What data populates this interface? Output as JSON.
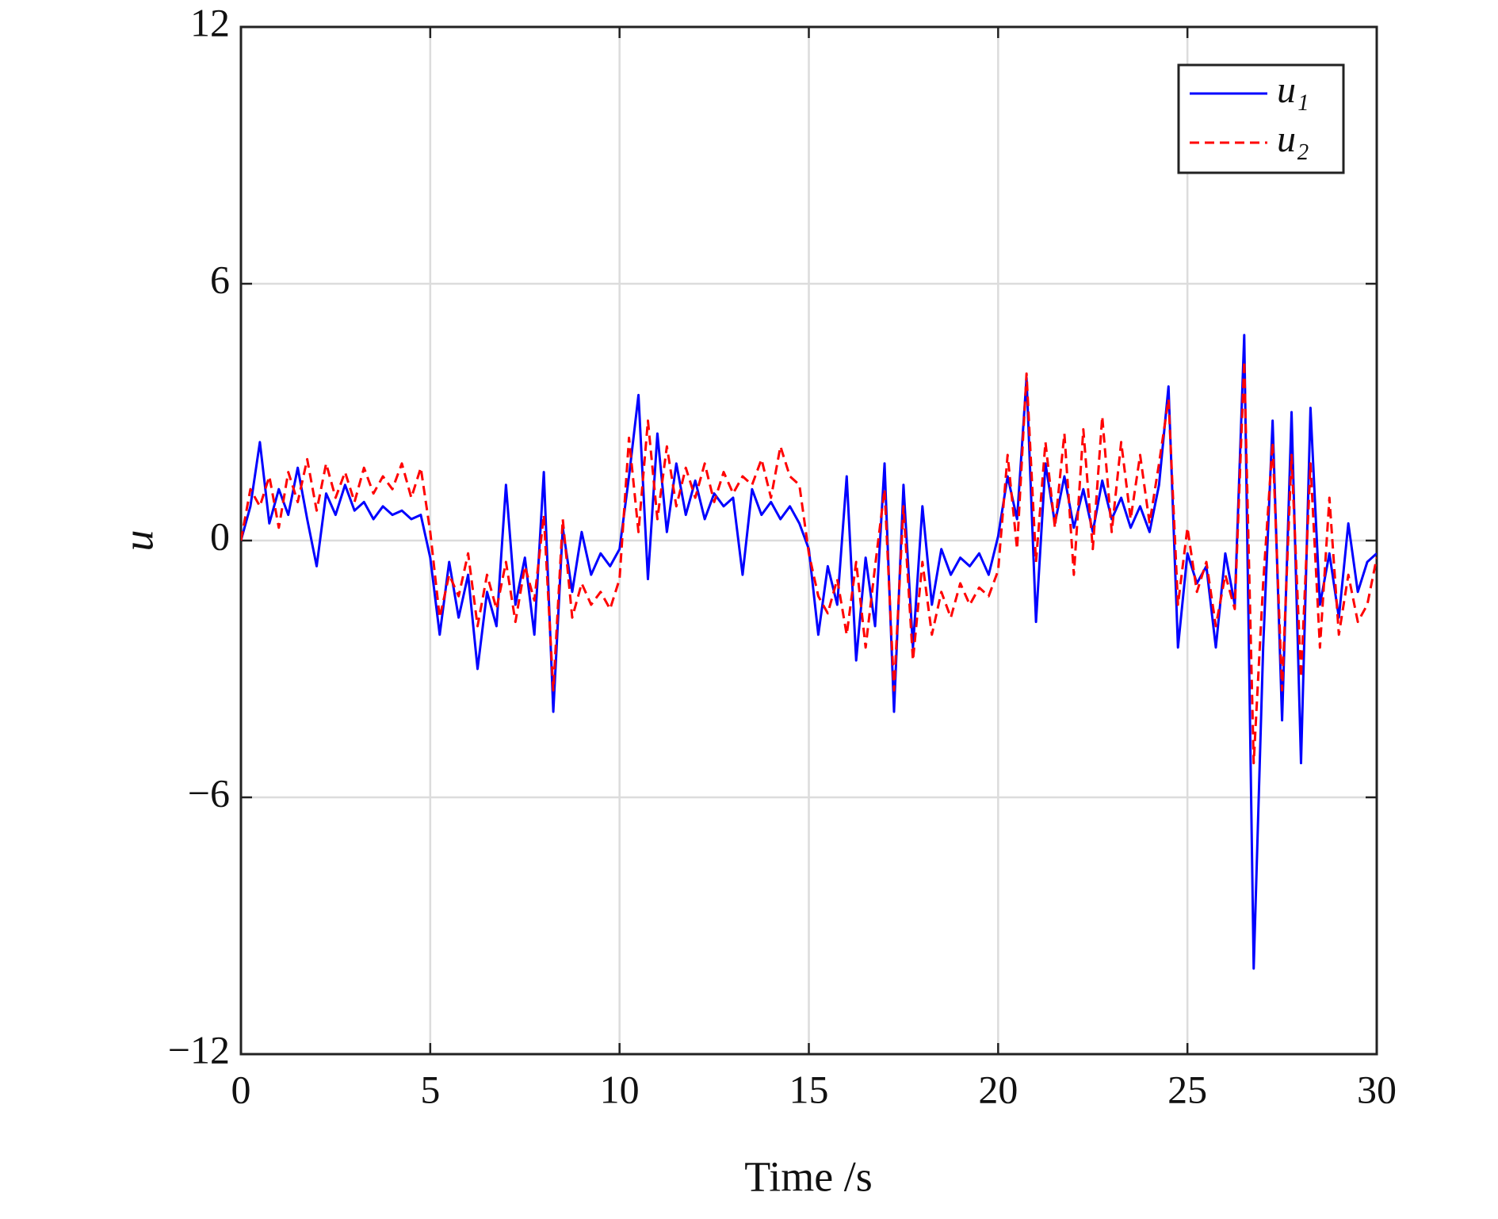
{
  "chart_data": {
    "type": "line",
    "x_label": "Time /s",
    "y_label": "u",
    "x": [
      0,
      0.25,
      0.5,
      0.75,
      1,
      1.25,
      1.5,
      1.75,
      2,
      2.25,
      2.5,
      2.75,
      3,
      3.25,
      3.5,
      3.75,
      4,
      4.25,
      4.5,
      4.75,
      5,
      5.25,
      5.5,
      5.75,
      6,
      6.25,
      6.5,
      6.75,
      7,
      7.25,
      7.5,
      7.75,
      8,
      8.25,
      8.5,
      8.75,
      9,
      9.25,
      9.5,
      9.75,
      10,
      10.25,
      10.5,
      10.75,
      11,
      11.25,
      11.5,
      11.75,
      12,
      12.25,
      12.5,
      12.75,
      13,
      13.25,
      13.5,
      13.75,
      14,
      14.25,
      14.5,
      14.75,
      15,
      15.25,
      15.5,
      15.75,
      16,
      16.25,
      16.5,
      16.75,
      17,
      17.25,
      17.5,
      17.75,
      18,
      18.25,
      18.5,
      18.75,
      19,
      19.25,
      19.5,
      19.75,
      20,
      20.25,
      20.5,
      20.75,
      21,
      21.25,
      21.5,
      21.75,
      22,
      22.25,
      22.5,
      22.75,
      23,
      23.25,
      23.5,
      23.75,
      24,
      24.25,
      24.5,
      24.75,
      25,
      25.25,
      25.5,
      25.75,
      26,
      26.25,
      26.5,
      26.75,
      27,
      27.25,
      27.5,
      27.75,
      28,
      28.25,
      28.5,
      28.75,
      29,
      29.25,
      29.5,
      29.75,
      30
    ],
    "series": [
      {
        "name": "u₁",
        "color": "#0000ff",
        "style": "solid",
        "values": [
          0,
          0.8,
          2.3,
          0.4,
          1.2,
          0.6,
          1.7,
          0.5,
          -0.6,
          1.1,
          0.6,
          1.3,
          0.7,
          0.9,
          0.5,
          0.8,
          0.6,
          0.7,
          0.5,
          0.6,
          -0.4,
          -2.2,
          -0.5,
          -1.8,
          -0.8,
          -3.0,
          -1.2,
          -2.0,
          1.3,
          -1.5,
          -0.4,
          -2.2,
          1.6,
          -4.0,
          0.3,
          -1.2,
          0.2,
          -0.8,
          -0.3,
          -0.6,
          -0.2,
          1.5,
          3.4,
          -0.9,
          2.5,
          0.2,
          1.8,
          0.6,
          1.4,
          0.5,
          1.1,
          0.8,
          1.0,
          -0.8,
          1.2,
          0.6,
          0.9,
          0.5,
          0.8,
          0.4,
          -0.2,
          -2.2,
          -0.6,
          -1.5,
          1.5,
          -2.8,
          -0.4,
          -2.0,
          1.8,
          -4.0,
          1.3,
          -2.5,
          0.8,
          -1.5,
          -0.2,
          -0.8,
          -0.4,
          -0.6,
          -0.3,
          -0.8,
          0.1,
          1.5,
          0.5,
          3.8,
          -1.9,
          1.8,
          0.4,
          1.5,
          0.3,
          1.2,
          0.2,
          1.4,
          0.5,
          1.0,
          0.3,
          0.8,
          0.2,
          1.3,
          3.6,
          -2.5,
          -0.3,
          -1.0,
          -0.6,
          -2.5,
          -0.3,
          -1.5,
          4.8,
          -10.0,
          -2.5,
          2.8,
          -4.2,
          3.0,
          -5.2,
          3.1,
          -1.5,
          -0.3,
          -1.8,
          0.4,
          -1.2,
          -0.5,
          -0.3
        ]
      },
      {
        "name": "u₂",
        "color": "#ff0000",
        "style": "dashed",
        "values": [
          0,
          1.2,
          0.8,
          1.5,
          0.3,
          1.6,
          0.9,
          1.9,
          0.7,
          1.8,
          1.0,
          1.6,
          0.9,
          1.7,
          1.1,
          1.5,
          1.2,
          1.8,
          1.0,
          1.7,
          0.2,
          -1.8,
          -0.8,
          -1.3,
          -0.3,
          -2.0,
          -0.8,
          -1.6,
          -0.5,
          -1.9,
          -0.6,
          -1.4,
          0.6,
          -3.5,
          0.5,
          -1.8,
          -1.0,
          -1.5,
          -1.2,
          -1.6,
          -0.9,
          2.4,
          0.2,
          2.8,
          0.5,
          2.2,
          0.8,
          1.7,
          1.0,
          1.8,
          0.9,
          1.6,
          1.1,
          1.5,
          1.3,
          1.9,
          1.0,
          2.2,
          1.5,
          1.3,
          -0.3,
          -1.3,
          -1.7,
          -0.9,
          -2.2,
          -0.5,
          -2.5,
          -0.6,
          1.2,
          -3.5,
          0.8,
          -2.8,
          -0.5,
          -2.2,
          -1.2,
          -1.8,
          -1.0,
          -1.5,
          -1.1,
          -1.3,
          -0.7,
          2.0,
          -0.2,
          3.9,
          -0.5,
          2.3,
          0.3,
          2.5,
          -0.8,
          2.6,
          -0.2,
          2.9,
          0.2,
          2.3,
          0.5,
          2.0,
          0.4,
          1.8,
          3.3,
          -1.5,
          0.3,
          -1.2,
          -0.5,
          -2.0,
          -0.8,
          -1.6,
          4.2,
          -5.2,
          -1.0,
          2.3,
          -3.5,
          2.0,
          -3.2,
          1.8,
          -2.5,
          1.0,
          -2.2,
          -0.8,
          -1.9,
          -1.5,
          -0.4
        ]
      }
    ],
    "xlim": [
      0,
      30
    ],
    "xticks": [
      0,
      5,
      10,
      15,
      20,
      25,
      30
    ],
    "ylim": [
      -12,
      12
    ],
    "yticks": [
      {
        "value": -12,
        "label": "−12"
      },
      {
        "value": -6,
        "label": "−6"
      },
      0,
      6,
      12
    ],
    "grid": true,
    "legend": "upper right"
  }
}
